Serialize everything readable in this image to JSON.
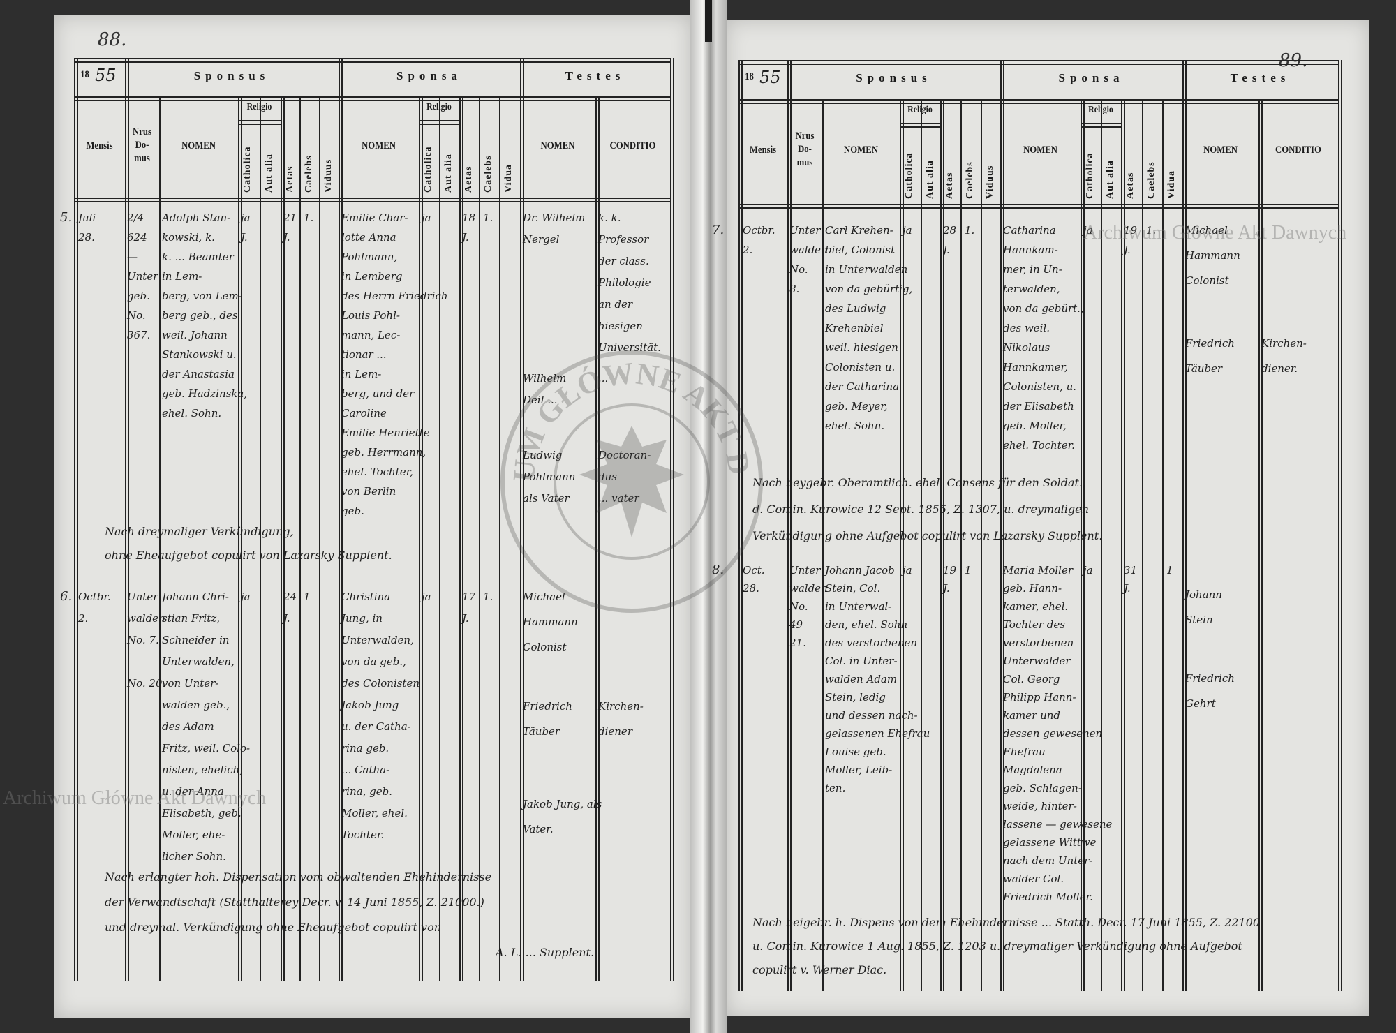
{
  "watermark": "Archiwum Główne Akt Dawnych",
  "stamp": {
    "text": "ARCHIWUM GŁÓWNE AKT DAWNYCH"
  },
  "header": {
    "year_prefix": "18",
    "sponsus": "Sponsus",
    "sponsa": "Sponsa",
    "testes": "Testes",
    "mensis": "Mensis",
    "nrus_domus": [
      "Nrus",
      "Do-",
      "mus"
    ],
    "nomen": "NOMEN",
    "religio": "Religio",
    "catholica": "Catholica",
    "aut_alia": "Aut alia",
    "aetas": "Aetas",
    "caelebs": "Caelebs",
    "viduus": "Viduus",
    "vidua": "Vidua",
    "conditio": "CONDITIO"
  },
  "pages": [
    {
      "page_number": "88.",
      "year_suffix": "55",
      "entries": [
        {
          "number": "5.",
          "mensis": [
            "Juli",
            "28."
          ],
          "nrus_domus": [
            "2/4",
            "624",
            "—",
            "Unter",
            "geb.",
            "No.",
            "367."
          ],
          "sponsus": {
            "nomen": [
              "Adolph Stan-",
              "kowski, k.",
              "k. ... Beamter",
              "in Lem-",
              "berg, von Lem-",
              "berg geb., des",
              "weil. Johann",
              "Stankowski u.",
              "der Anastasia",
              "geb. Hadzinska,",
              "ehel. Sohn."
            ],
            "catholica": [
              "ja",
              "J."
            ],
            "aetas": [
              "21",
              "J."
            ],
            "caelebs": [
              "1."
            ],
            "viduus": []
          },
          "sponsa": {
            "nomen": [
              "Emilie Char-",
              "lotte Anna",
              "Pohlmann,",
              "in Lemberg",
              "des Herrn Friedrich",
              "Louis Pohl-",
              "mann, Lec-",
              "tionar ...",
              "in Lem-",
              "berg, und der",
              "Caroline",
              "Emilie Henriette",
              "geb. Herrmann,",
              "ehel. Tochter,",
              "von Berlin",
              "geb."
            ],
            "catholica": [
              "ja"
            ],
            "aetas": [
              "18",
              "J."
            ],
            "caelebs": [
              "1."
            ],
            "vidua": []
          },
          "testes": [
            {
              "nomen": [
                "Dr. Wilhelm",
                "Nergel"
              ],
              "conditio": [
                "k. k.",
                "Professor",
                "der class.",
                "Philologie",
                "an der",
                "hiesigen",
                "Universität."
              ]
            },
            {
              "nomen": [
                "Wilhelm",
                "Deil ..."
              ],
              "conditio": [
                "..."
              ]
            },
            {
              "nomen": [
                "Ludwig",
                "Pohlmann",
                "als Vater"
              ],
              "conditio": [
                "Doctoran-",
                "dus",
                "... vater"
              ]
            }
          ],
          "note": [
            "Nach dreymaliger Verkündigung,",
            "ohne Eheaufgebot copulirt von   Lazarsky Supplent."
          ]
        },
        {
          "number": "6.",
          "mensis": [
            "Octbr.",
            "2."
          ],
          "nrus_domus": [
            "Unter",
            "walden",
            "No. 7.",
            "",
            "No. 20."
          ],
          "sponsus": {
            "nomen": [
              "Johann Chri-",
              "stian Fritz,",
              "Schneider in",
              "Unterwalden,",
              "von Unter-",
              "walden geb.,",
              "des Adam",
              "Fritz, weil. Colo-",
              "nisten, ehelich,",
              "u. der Anna",
              "Elisabeth, geb.",
              "Moller, ehe-",
              "licher Sohn."
            ],
            "catholica": [
              "ja"
            ],
            "aetas": [
              "24",
              "J."
            ],
            "caelebs": [
              "1"
            ],
            "viduus": []
          },
          "sponsa": {
            "nomen": [
              "Christina",
              "Jung, in",
              "Unterwalden,",
              "von da geb.,",
              "des Colonisten",
              "Jakob Jung",
              "u. der Catha-",
              "rina geb.",
              "... Catha-",
              "rina, geb.",
              "Moller, ehel.",
              "Tochter."
            ],
            "catholica": [
              "ja"
            ],
            "aetas": [
              "17",
              "J."
            ],
            "caelebs": [
              "1."
            ],
            "vidua": []
          },
          "testes": [
            {
              "nomen": [
                "Michael",
                "Hammann",
                "Colonist"
              ],
              "conditio": []
            },
            {
              "nomen": [
                "Friedrich",
                "Täuber"
              ],
              "conditio": [
                "Kirchen-",
                "diener"
              ]
            },
            {
              "nomen": [
                "Jakob Jung, als",
                "Vater."
              ],
              "conditio": []
            }
          ],
          "note": [
            "Nach erlangter hoh. Dispensation vom obwaltenden Ehehindernisse",
            "der Verwandtschaft (Statthalterey Decr. v. 14 Juni 1855, Z. 21000.)",
            "und dreymal. Verkündigung ohne Eheaufgebot copulirt von",
            "A. L. ... Supplent."
          ]
        }
      ]
    },
    {
      "page_number": "89.",
      "year_suffix": "55",
      "entries": [
        {
          "number": "7.",
          "mensis": [
            "Octbr.",
            "2."
          ],
          "nrus_domus": [
            "Unter",
            "walden",
            "No.",
            "8."
          ],
          "sponsus": {
            "nomen": [
              "Carl Krehen-",
              "biel, Colonist",
              "in Unterwalden",
              "von da gebürtig,",
              "des Ludwig",
              "Krehenbiel",
              "weil. hiesigen",
              "Colonisten u.",
              "der Catharina",
              "geb. Meyer,",
              "ehel. Sohn."
            ],
            "catholica": [
              "ja"
            ],
            "aetas": [
              "28",
              "J."
            ],
            "caelebs": [
              "1."
            ],
            "viduus": []
          },
          "sponsa": {
            "nomen": [
              "Catharina",
              "Hannkam-",
              "mer, in Un-",
              "terwalden,",
              "von da gebürt.,",
              "des weil.",
              "Nikolaus",
              "Hannkamer,",
              "Colonisten, u.",
              "der Elisabeth",
              "geb. Moller,",
              "ehel. Tochter."
            ],
            "catholica": [
              "ja"
            ],
            "aetas": [
              "19",
              "J."
            ],
            "caelebs": [
              "1."
            ],
            "vidua": []
          },
          "testes": [
            {
              "nomen": [
                "Michael",
                "Hammann",
                "Colonist"
              ],
              "conditio": []
            },
            {
              "nomen": [
                "Friedrich",
                "Täuber"
              ],
              "conditio": [
                "Kirchen-",
                "diener."
              ]
            }
          ],
          "note": [
            "Nach beygebr. Oberamtlich. ehel. Consens für den Soldat.,",
            "d. Comin. Kurowice 12 Sept. 1855, Z. 1307, u. dreymaligen",
            "Verkündigung ohne Aufgebot copulirt von   Lazarsky Supplent."
          ]
        },
        {
          "number": "8.",
          "mensis": [
            "Oct.",
            "28."
          ],
          "nrus_domus": [
            "Unter",
            "walden",
            "No.",
            "49",
            "21."
          ],
          "sponsus": {
            "nomen": [
              "Johann Jacob",
              "Stein, Col.",
              "in Unterwal-",
              "den, ehel. Sohn",
              "des verstorbenen",
              "Col. in Unter-",
              "walden Adam",
              "Stein, ledig",
              "und dessen nach-",
              "gelassenen Ehefrau",
              "Louise geb.",
              "Moller, Leib-",
              "ten."
            ],
            "catholica": [
              "ja"
            ],
            "aetas": [
              "19",
              "J."
            ],
            "caelebs": [
              "1"
            ],
            "viduus": []
          },
          "sponsa": {
            "nomen": [
              "Maria Moller",
              "geb. Hann-",
              "kamer, ehel.",
              "Tochter des",
              "verstorbenen",
              "Unterwalder",
              "Col. Georg",
              "Philipp Hann-",
              "kamer und",
              "dessen gewesenen",
              "Ehefrau",
              "Magdalena",
              "geb. Schlagen-",
              "weide, hinter-",
              "lassene — gewesene",
              "gelassene Wittwe",
              "nach dem Unter-",
              "walder Col.",
              "Friedrich Moller."
            ],
            "catholica": [
              "ja"
            ],
            "aetas": [
              "31",
              "J."
            ],
            "caelebs": [],
            "vidua": [
              "1"
            ]
          },
          "testes": [
            {
              "nomen": [
                "Johann",
                "Stein"
              ],
              "conditio": []
            },
            {
              "nomen": [
                "Friedrich",
                "Gehrt"
              ],
              "conditio": []
            }
          ],
          "note": [
            "Nach beigebr. h. Dispens von dem Ehehindernisse ... Statth. Decr. 17 Juni 1855, Z. 22100",
            "u. Comin. Kurowice 1 Aug. 1855, Z. 1203 u. dreymaliger Verkündigung ohne Aufgebot",
            "copulirt v.   Werner Diac."
          ]
        }
      ]
    }
  ]
}
